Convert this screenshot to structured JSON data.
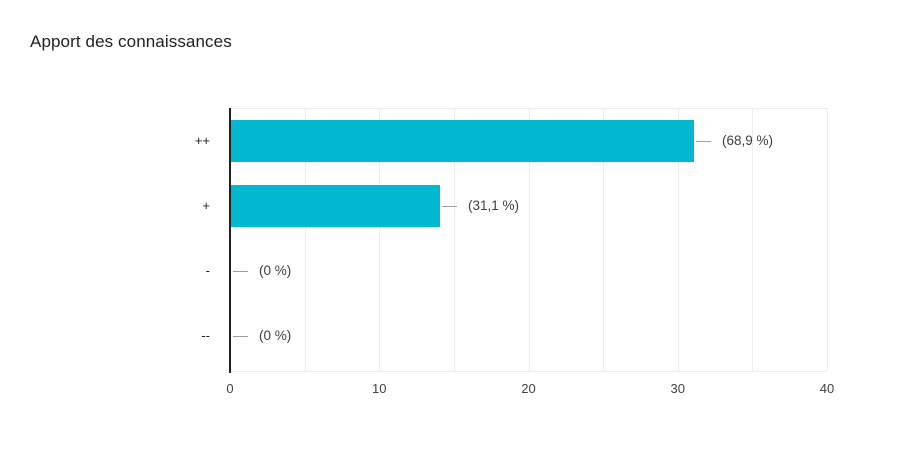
{
  "chart_data": {
    "type": "bar",
    "orientation": "horizontal",
    "title": "Apport des connaissances",
    "categories": [
      "++",
      "+",
      "-",
      "--"
    ],
    "values": [
      31,
      14,
      0,
      0
    ],
    "value_labels": [
      "(68,9 %)",
      "(31,1 %)",
      "(0 %)",
      "(0 %)"
    ],
    "x_ticks": [
      "0",
      "10",
      "20",
      "30",
      "40"
    ],
    "x_tick_values": [
      0,
      10,
      20,
      30,
      40
    ],
    "xlim": [
      0,
      40
    ],
    "minor_grid_step": 5,
    "grid": "vertical",
    "legend": "none"
  },
  "colors": {
    "bar": "#00b8d0",
    "axis": "#212121",
    "grid": "#ededed",
    "callout": "#9e9e9e",
    "title_text": "#212121",
    "category_text": "#212121",
    "value_text": "#3c4043",
    "tick_text": "#424242"
  }
}
